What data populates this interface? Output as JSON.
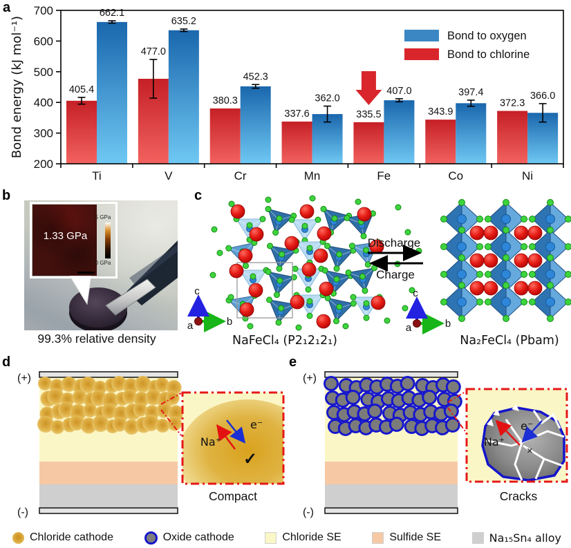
{
  "panel_labels": {
    "a": "a",
    "b": "b",
    "c": "c",
    "d": "d",
    "e": "e"
  },
  "chart_data": {
    "type": "bar",
    "title": "",
    "ylabel": "Bond energy (kJ mol⁻¹)",
    "xlabel": "",
    "categories": [
      "Ti",
      "V",
      "Cr",
      "Mn",
      "Fe",
      "Co",
      "Ni"
    ],
    "series": [
      {
        "name": "Bond to chlorine",
        "values": [
          405.4,
          477.0,
          380.3,
          337.6,
          335.5,
          343.9,
          372.3
        ],
        "errors": [
          11,
          63,
          0,
          0,
          0,
          0,
          0
        ],
        "color_top": "#c52026",
        "color_bottom": "#f2625f"
      },
      {
        "name": "Bond to oxygen",
        "values": [
          662.1,
          635.2,
          452.3,
          362.0,
          407.0,
          397.4,
          366.0
        ],
        "errors": [
          4,
          4,
          6,
          26,
          5,
          10,
          30
        ],
        "color_top": "#1a67ad",
        "color_bottom": "#6fc8f3"
      }
    ],
    "legend": [
      {
        "label": "Bond to oxygen",
        "color": "#3a87c3"
      },
      {
        "label": "Bond to chlorine",
        "color": "#d8262c"
      }
    ],
    "ylim": [
      200,
      700
    ],
    "yticks": [
      200,
      300,
      400,
      500,
      600,
      700
    ],
    "grid": false,
    "legend_position": "upper right",
    "annotation": {
      "type": "arrow-down",
      "target": "Fe chlorine bar",
      "color": "#d8262c"
    }
  },
  "panel_b": {
    "inset_pressure": "1.33 GPa",
    "scale_top": "5 GPa",
    "scale_bottom": "0 GPa",
    "caption": "99.3% relative density"
  },
  "panel_c": {
    "discharge": "Discharge",
    "charge": "Charge",
    "left_label": "NaFeCl₄ (P2₁2₁2₁)",
    "right_label": "Na₂FeCl₄ (Pbam)",
    "axis": {
      "up": "c",
      "right": "b",
      "origin": "a"
    }
  },
  "panel_d": {
    "plus": "(+)",
    "minus": "(-)",
    "na": "Na⁺",
    "e": "e⁻",
    "check": "✓",
    "caption": "Compact"
  },
  "panel_e": {
    "plus": "(+)",
    "minus": "(-)",
    "na": "Na⁺",
    "e": "e⁻",
    "cross": "×",
    "caption": "Cracks"
  },
  "legend": {
    "items": [
      {
        "label": "Chloride cathode",
        "swatch": "gold-circle",
        "color": "#e2b44d"
      },
      {
        "label": "Oxide cathode",
        "swatch": "gray-circle-blue-ring",
        "color": "#7d7d7d",
        "ring": "#1717cd"
      },
      {
        "label": "Chloride SE",
        "swatch": "square",
        "color": "#fbf6c6"
      },
      {
        "label": "Sulfide SE",
        "swatch": "square",
        "color": "#f6c9a4"
      },
      {
        "label": "Na₁₅Sn₄ alloy",
        "swatch": "square",
        "color": "#cfcfcf"
      }
    ]
  },
  "colors": {
    "chloride_se": "#fbf6c6",
    "sulfide_se": "#f6c9a4",
    "alloy": "#cfcfcf",
    "electrode": "#e4e4e4",
    "inset_border": "#e61717",
    "na_sphere": "#dd1111",
    "cl_dot": "#3ed43e",
    "octahedron": "#3f87c9"
  }
}
